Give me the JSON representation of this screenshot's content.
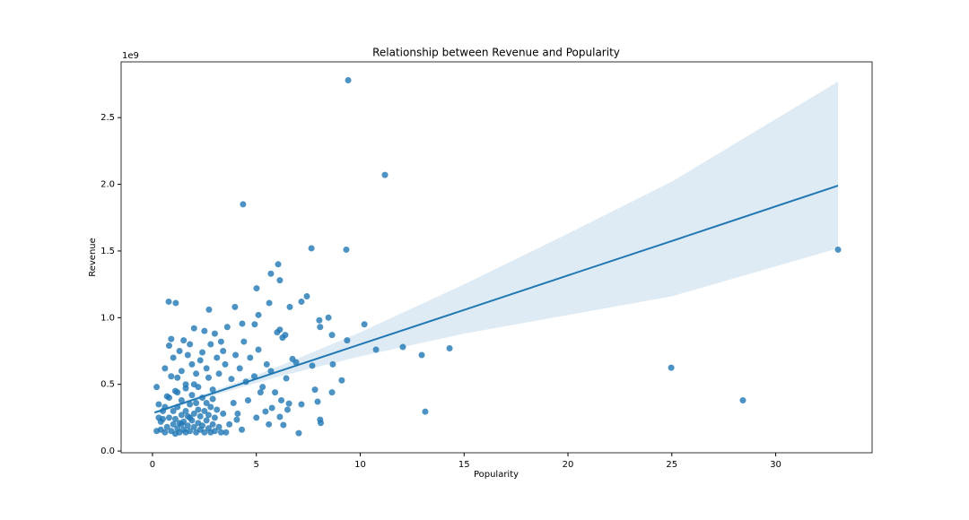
{
  "chart_data": {
    "type": "regplot",
    "title": "Relationship between Revenue and Popularity",
    "x_label": "Popularity",
    "y_label": "Revenue",
    "y_offset_label": "1e9",
    "color": "#1f77b4",
    "xlim": [
      -1.51,
      34.64
    ],
    "ylim": [
      -0.013,
      2.918
    ],
    "xticks": [
      0,
      5,
      10,
      15,
      20,
      25,
      30
    ],
    "yticks": [
      {
        "value": 0,
        "label": "0.0"
      },
      0.5,
      {
        "value": 1,
        "label": "1.0"
      },
      1.5,
      {
        "value": 2,
        "label": "2.0"
      },
      2.5
    ],
    "x": [
      9.42,
      11.19,
      4.36,
      7.65,
      9.33,
      33.0,
      24.97,
      28.42,
      13.13,
      14.3,
      12.96,
      12.05,
      10.76,
      10.2,
      9.37,
      8.47,
      8.64,
      8.03,
      8.07,
      8.68,
      9.11,
      8.64,
      7.69,
      7.82,
      7.95,
      8.07,
      8.1,
      7.43,
      7.17,
      6.61,
      6.05,
      5.7,
      6.13,
      5.01,
      5.62,
      5.1,
      3.97,
      2.72,
      0.78,
      1.12,
      4.32,
      4.92,
      6.13,
      6.39,
      6.26,
      6.74,
      6.91,
      6.44,
      6.57,
      7.17,
      7.04,
      6.3,
      6.13,
      5.75,
      5.44,
      4.06,
      3.54,
      0.2,
      0.3,
      0.2,
      0.4,
      0.5,
      0.6,
      0.7,
      0.8,
      0.9,
      0.9,
      1.0,
      1.1,
      1.2,
      1.3,
      1.4,
      1.5,
      1.6,
      1.7,
      1.8,
      1.9,
      2.0,
      2.1,
      2.2,
      2.3,
      2.4,
      2.5,
      2.6,
      2.7,
      2.8,
      2.9,
      3.0,
      3.1,
      3.2,
      3.3,
      3.4,
      3.5,
      3.6,
      3.8,
      4.0,
      4.2,
      4.4,
      4.5,
      4.7,
      4.9,
      5.1,
      5.3,
      5.5,
      5.7,
      5.9,
      6.0,
      3.9,
      4.1,
      4.6,
      5.0,
      5.2,
      5.6,
      6.2,
      6.5,
      3.7,
      4.3,
      0.6,
      0.7,
      0.8,
      0.9,
      1.0,
      1.0,
      1.1,
      1.1,
      1.2,
      1.2,
      1.3,
      1.3,
      1.4,
      1.4,
      1.5,
      1.5,
      1.6,
      1.6,
      1.7,
      1.7,
      1.8,
      1.8,
      1.9,
      1.9,
      2.0,
      2.0,
      2.1,
      2.1,
      2.2,
      2.2,
      2.3,
      2.3,
      2.4,
      2.4,
      2.5,
      2.5,
      2.6,
      2.6,
      2.7,
      2.7,
      2.8,
      2.8,
      2.9,
      2.9,
      3.0,
      3.0,
      3.1,
      3.2,
      3.3,
      3.4,
      0.5,
      0.6,
      0.8,
      1.2,
      1.6,
      2.0,
      0.4,
      0.3,
      1.4,
      1.8
    ],
    "y": [
      2.78,
      2.07,
      1.85,
      1.52,
      1.51,
      1.51,
      0.625,
      0.38,
      0.295,
      0.77,
      0.72,
      0.78,
      0.76,
      0.95,
      0.83,
      1.0,
      0.87,
      0.98,
      0.93,
      0.65,
      0.53,
      0.44,
      0.64,
      0.46,
      0.37,
      0.235,
      0.21,
      1.16,
      1.12,
      1.08,
      1.4,
      1.33,
      1.28,
      1.22,
      1.11,
      1.02,
      1.08,
      1.06,
      1.12,
      1.11,
      0.955,
      0.95,
      0.91,
      0.87,
      0.85,
      0.69,
      0.665,
      0.545,
      0.356,
      0.35,
      0.134,
      0.195,
      0.256,
      0.323,
      0.296,
      0.235,
      0.14,
      0.48,
      0.35,
      0.15,
      0.22,
      0.3,
      0.62,
      0.41,
      0.79,
      0.84,
      0.56,
      0.7,
      0.45,
      0.55,
      0.75,
      0.6,
      0.83,
      0.5,
      0.72,
      0.8,
      0.65,
      0.92,
      0.58,
      0.48,
      0.68,
      0.74,
      0.9,
      0.62,
      0.55,
      0.8,
      0.46,
      0.88,
      0.7,
      0.58,
      0.82,
      0.75,
      0.65,
      0.93,
      0.54,
      0.72,
      0.62,
      0.82,
      0.52,
      0.7,
      0.56,
      0.76,
      0.48,
      0.65,
      0.6,
      0.44,
      0.89,
      0.36,
      0.28,
      0.38,
      0.25,
      0.44,
      0.2,
      0.38,
      0.31,
      0.2,
      0.16,
      0.14,
      0.18,
      0.25,
      0.15,
      0.2,
      0.3,
      0.13,
      0.24,
      0.17,
      0.33,
      0.21,
      0.14,
      0.27,
      0.38,
      0.16,
      0.22,
      0.3,
      0.14,
      0.19,
      0.26,
      0.35,
      0.15,
      0.23,
      0.42,
      0.18,
      0.28,
      0.14,
      0.36,
      0.21,
      0.31,
      0.16,
      0.26,
      0.4,
      0.19,
      0.14,
      0.3,
      0.23,
      0.36,
      0.17,
      0.27,
      0.14,
      0.33,
      0.2,
      0.39,
      0.15,
      0.25,
      0.31,
      0.18,
      0.14,
      0.28,
      0.24,
      0.33,
      0.4,
      0.44,
      0.47,
      0.5,
      0.16,
      0.25,
      0.2,
      0.25
    ],
    "fit": {
      "x": [
        0.1,
        3,
        6,
        10,
        15,
        20,
        25,
        33
      ],
      "y": [
        0.288,
        0.438,
        0.593,
        0.8,
        1.058,
        1.317,
        1.575,
        1.99
      ],
      "ci_upper": [
        0.3,
        0.455,
        0.63,
        0.89,
        1.25,
        1.63,
        2.02,
        2.77
      ],
      "ci_lower": [
        0.275,
        0.42,
        0.555,
        0.71,
        0.88,
        1.02,
        1.16,
        1.52
      ]
    }
  }
}
